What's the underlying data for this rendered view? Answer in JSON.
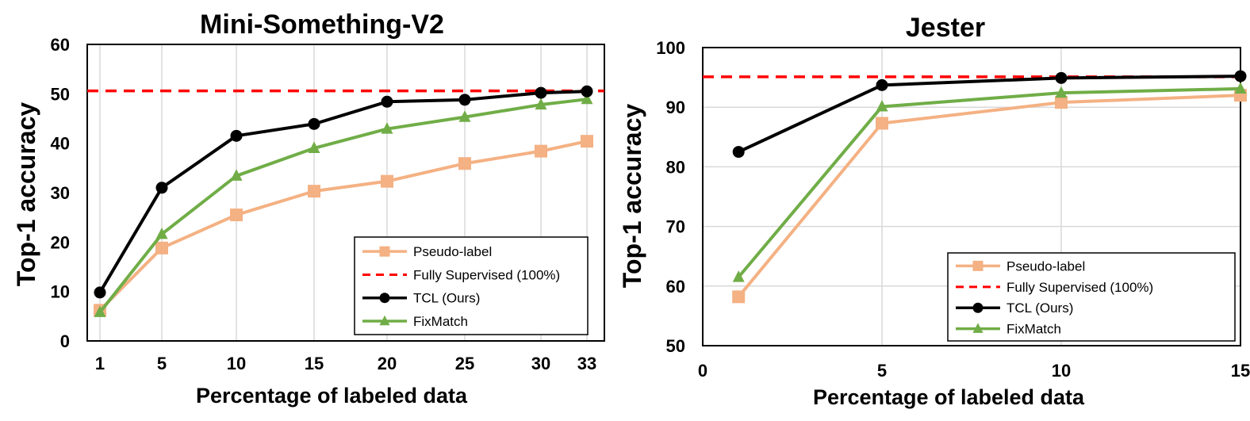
{
  "colors": {
    "pseudo_label": "#F4B183",
    "fully_supervised": "#FF0000",
    "tcl": "#000000",
    "fixmatch": "#70AD47",
    "grid": "#D9D9D9"
  },
  "chart_data": [
    {
      "type": "line",
      "title": "Mini-Something-V2",
      "xlabel": "Percentage  of labeled data",
      "ylabel": "Top-1 accuracy",
      "x_scale": "categorical",
      "categories": [
        "1",
        "5",
        "10",
        "15",
        "20",
        "25",
        "30",
        "33"
      ],
      "yticks": [
        "0",
        "10",
        "20",
        "30",
        "40",
        "50",
        "60"
      ],
      "ylim": [
        0,
        60
      ],
      "grid": "vertical",
      "legend_position": "bottom-right",
      "series": [
        {
          "name": "Pseudo-label",
          "key": "pseudo_label",
          "marker": "square",
          "values": [
            6.2,
            18.8,
            25.5,
            30.3,
            32.3,
            35.9,
            38.4,
            40.4
          ]
        },
        {
          "name": "Fully Supervised (100%)",
          "key": "fully_supervised",
          "style": "dashed",
          "constant": 50.6
        },
        {
          "name": "TCL (Ours)",
          "key": "tcl",
          "marker": "circle",
          "values": [
            9.8,
            31.0,
            41.5,
            43.9,
            48.4,
            48.8,
            50.2,
            50.5
          ]
        },
        {
          "name": "FixMatch",
          "key": "fixmatch",
          "marker": "triangle",
          "values": [
            5.8,
            21.6,
            33.4,
            39.0,
            42.9,
            45.3,
            47.8,
            48.9
          ]
        }
      ]
    },
    {
      "type": "line",
      "title": "Jester",
      "xlabel": "Percentage  of labeled data",
      "ylabel": "Top-1 accuracy",
      "x_scale": "linear",
      "x": [
        1,
        5,
        10,
        15
      ],
      "xticks": [
        "0",
        "5",
        "10",
        "15"
      ],
      "xlim": [
        0,
        15
      ],
      "yticks": [
        "50",
        "60",
        "70",
        "80",
        "90",
        "100"
      ],
      "ylim": [
        50,
        100
      ],
      "grid": "both",
      "legend_position": "bottom-right",
      "series": [
        {
          "name": "Pseudo-label",
          "key": "pseudo_label",
          "marker": "square",
          "values": [
            58.2,
            87.3,
            90.8,
            92.0
          ]
        },
        {
          "name": "Fully Supervised (100%)",
          "key": "fully_supervised",
          "style": "dashed",
          "constant": 95.1
        },
        {
          "name": "TCL (Ours)",
          "key": "tcl",
          "marker": "circle",
          "values": [
            82.5,
            93.7,
            94.9,
            95.2
          ]
        },
        {
          "name": "FixMatch",
          "key": "fixmatch",
          "marker": "triangle",
          "values": [
            61.5,
            90.1,
            92.4,
            93.1
          ]
        }
      ]
    }
  ]
}
